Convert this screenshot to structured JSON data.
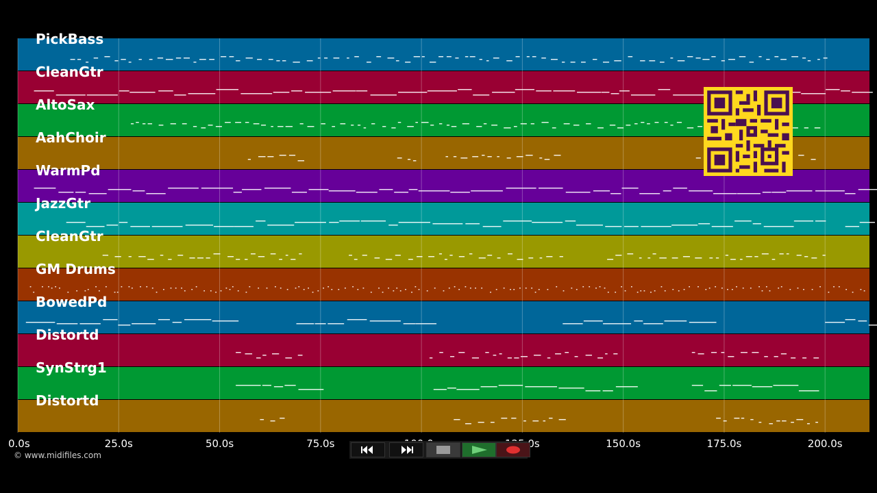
{
  "tracks": [
    {
      "name": "PickBass",
      "color": "#006699"
    },
    {
      "name": "CleanGtr",
      "color": "#990033"
    },
    {
      "name": "AltoSax",
      "color": "#009933"
    },
    {
      "name": "AahChoir",
      "color": "#996600"
    },
    {
      "name": "WarmPd",
      "color": "#660099"
    },
    {
      "name": "JazzGtr",
      "color": "#009999"
    },
    {
      "name": "CleanGtr",
      "color": "#999900"
    },
    {
      "name": "GM Drums",
      "color": "#993300"
    },
    {
      "name": "BowedPd",
      "color": "#006699"
    },
    {
      "name": "Distortd",
      "color": "#990033"
    },
    {
      "name": "SynStrg1",
      "color": "#009933"
    },
    {
      "name": "Distortd",
      "color": "#996600"
    }
  ],
  "timeline": {
    "ticks": [
      "0.0s",
      "25.0s",
      "50.0s",
      "75.0s",
      "100.0s",
      "125.0s",
      "150.0s",
      "175.0s",
      "200.0s"
    ],
    "tick_values": [
      0,
      25,
      50,
      75,
      100,
      125,
      150,
      175,
      200
    ],
    "max_seconds": 211
  },
  "copyright": "© www.midifiles.com",
  "transport": {
    "rewind": "rewind-icon",
    "fast_forward": "fast-forward-icon",
    "stop": "stop-icon",
    "play": "play-icon",
    "record": "record-icon"
  },
  "qr_code": "qr-code-icon"
}
